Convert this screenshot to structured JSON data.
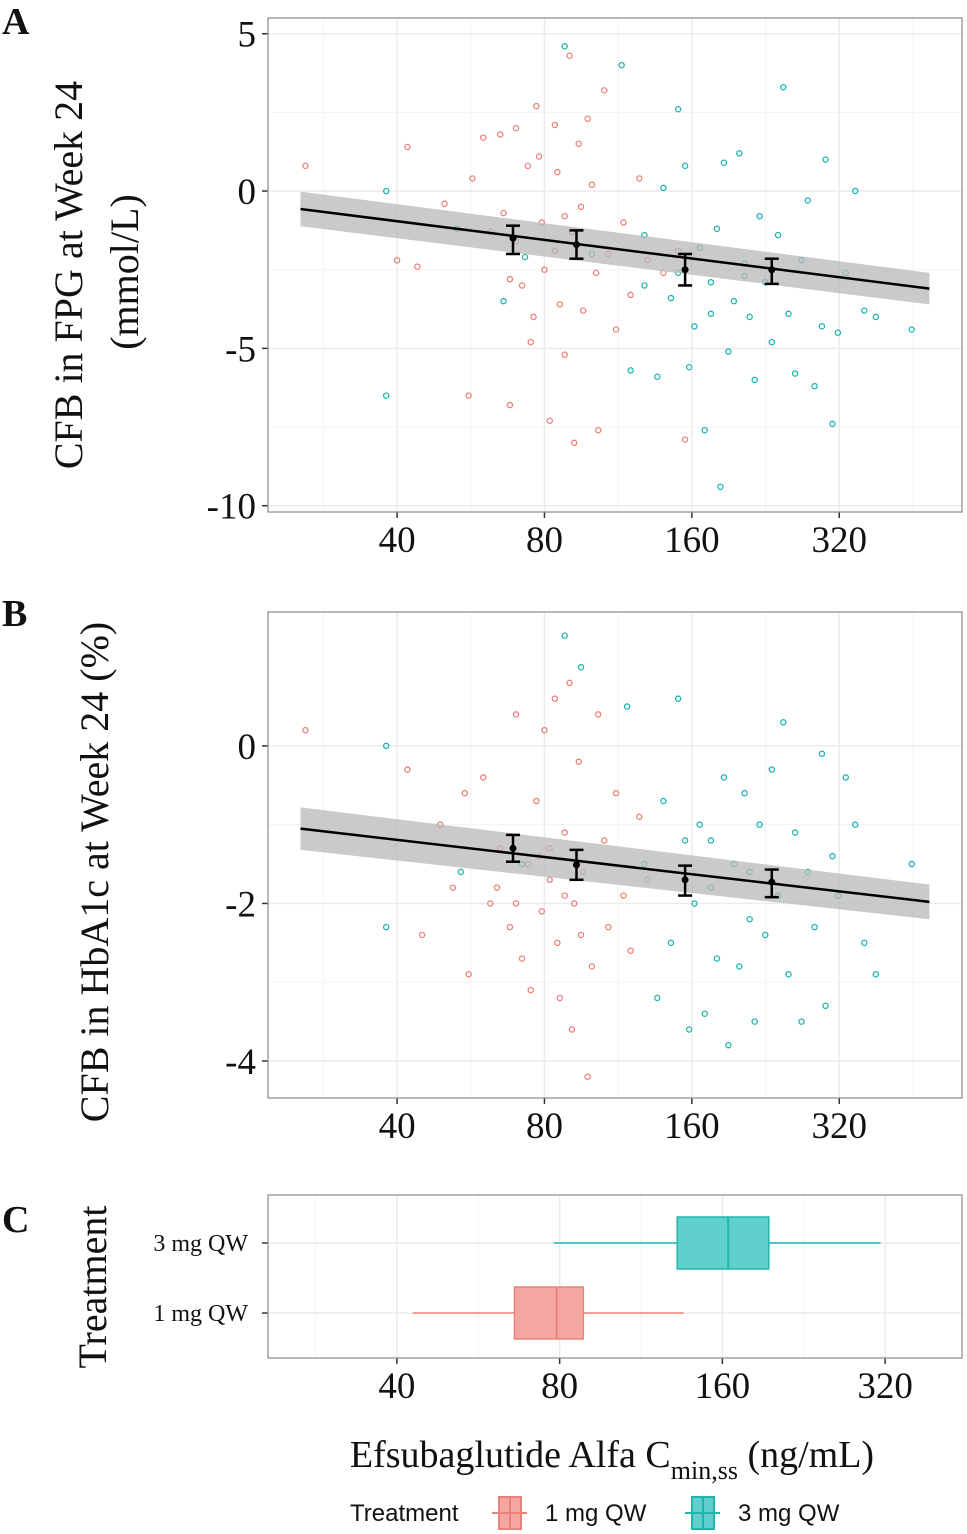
{
  "colors": {
    "red": "#e8837a",
    "teal": "#22b5b0",
    "red_fill": "#f4a6a1",
    "teal_fill": "#5fd0cb",
    "band": "#b8b8b8",
    "grid": "#ebebeb"
  },
  "x_title": {
    "main": "Efsubaglutide Alfa C",
    "sub": "min,ss",
    "unit": " (ng/mL)"
  },
  "legend": {
    "title": "Treatment",
    "items": [
      "1  mg QW",
      "3  mg QW"
    ]
  },
  "chart_data": [
    {
      "panel": "A",
      "type": "scatter",
      "ylabel": [
        "CFB in FPG at Week 24",
        "(mmol/L)"
      ],
      "x_scale": "log2",
      "xlim": [
        21.8,
        570
      ],
      "ylim": [
        -10.2,
        5.5
      ],
      "x_ticks": [
        "40",
        "80",
        "160",
        "320"
      ],
      "y_ticks": [
        "5",
        "0",
        "-5",
        "-10"
      ],
      "grid": true,
      "regression": {
        "x": [
          25.4,
          489
        ],
        "y": [
          -0.57,
          -3.1
        ],
        "band_halfwidth": [
          0.55,
          0.5
        ]
      },
      "binned_means": [
        {
          "x": 69,
          "y": -1.5,
          "lo": -2.0,
          "hi": -1.1
        },
        {
          "x": 93,
          "y": -1.7,
          "lo": -2.15,
          "hi": -1.25
        },
        {
          "x": 155,
          "y": -2.5,
          "lo": -3.0,
          "hi": -2.0
        },
        {
          "x": 233,
          "y": -2.5,
          "lo": -2.95,
          "hi": -2.15
        }
      ],
      "series": [
        {
          "name": "1  mg QW",
          "points": [
            [
              26,
              0.8
            ],
            [
              42,
              1.4
            ],
            [
              40,
              -2.2
            ],
            [
              44,
              -2.4
            ],
            [
              50,
              -0.4
            ],
            [
              56,
              -6.5
            ],
            [
              57,
              0.4
            ],
            [
              60,
              1.7
            ],
            [
              62,
              -1.3
            ],
            [
              65,
              1.8
            ],
            [
              66,
              -0.7
            ],
            [
              68,
              -6.8
            ],
            [
              70,
              2.0
            ],
            [
              72,
              -3.0
            ],
            [
              74,
              0.8
            ],
            [
              75,
              -4.8
            ],
            [
              77,
              2.7
            ],
            [
              79,
              -1.0
            ],
            [
              80,
              -2.5
            ],
            [
              82,
              -7.3
            ],
            [
              84,
              2.1
            ],
            [
              85,
              0.6
            ],
            [
              86,
              -3.6
            ],
            [
              88,
              -5.2
            ],
            [
              90,
              4.3
            ],
            [
              91,
              -1.3
            ],
            [
              92,
              -8.0
            ],
            [
              94,
              1.5
            ],
            [
              96,
              -3.8
            ],
            [
              98,
              2.3
            ],
            [
              100,
              0.2
            ],
            [
              103,
              -7.6
            ],
            [
              106,
              3.2
            ],
            [
              108,
              -2.0
            ],
            [
              112,
              -4.4
            ],
            [
              116,
              -1.0
            ],
            [
              120,
              -3.3
            ],
            [
              125,
              0.4
            ],
            [
              130,
              -2.2
            ],
            [
              155,
              -7.9
            ],
            [
              150,
              -1.9
            ],
            [
              140,
              -2.6
            ],
            [
              70,
              -1.6
            ],
            [
              84,
              -1.9
            ],
            [
              95,
              -0.5
            ],
            [
              78,
              1.1
            ],
            [
              68,
              -2.8
            ],
            [
              102,
              -2.6
            ],
            [
              88,
              -0.8
            ],
            [
              76,
              -4.0
            ]
          ]
        },
        {
          "name": "3  mg QW",
          "points": [
            [
              38,
              0
            ],
            [
              38,
              -6.5
            ],
            [
              53,
              -1.2
            ],
            [
              66,
              -3.5
            ],
            [
              73,
              -2.1
            ],
            [
              88,
              4.6
            ],
            [
              100,
              -2.0
            ],
            [
              115,
              4.0
            ],
            [
              120,
              -5.7
            ],
            [
              128,
              -1.4
            ],
            [
              136,
              -5.9
            ],
            [
              140,
              0.1
            ],
            [
              145,
              -3.4
            ],
            [
              150,
              2.6
            ],
            [
              155,
              0.8
            ],
            [
              158,
              -5.6
            ],
            [
              162,
              -4.3
            ],
            [
              166,
              -1.8
            ],
            [
              170,
              -7.6
            ],
            [
              175,
              -2.9
            ],
            [
              180,
              -1.2
            ],
            [
              183,
              -9.4
            ],
            [
              186,
              0.9
            ],
            [
              190,
              -5.1
            ],
            [
              195,
              -3.5
            ],
            [
              200,
              1.2
            ],
            [
              205,
              -2.3
            ],
            [
              210,
              -4.0
            ],
            [
              215,
              -6.0
            ],
            [
              220,
              -0.8
            ],
            [
              226,
              -2.9
            ],
            [
              233,
              -4.8
            ],
            [
              240,
              -1.4
            ],
            [
              246,
              3.3
            ],
            [
              252,
              -3.9
            ],
            [
              260,
              -5.8
            ],
            [
              268,
              -2.2
            ],
            [
              276,
              -0.3
            ],
            [
              285,
              -6.2
            ],
            [
              295,
              -4.3
            ],
            [
              300,
              1.0
            ],
            [
              310,
              -7.4
            ],
            [
              318,
              -4.5
            ],
            [
              330,
              -2.6
            ],
            [
              345,
              0.0
            ],
            [
              360,
              -3.8
            ],
            [
              380,
              -4.0
            ],
            [
              450,
              -4.4
            ],
            [
              175,
              -3.9
            ],
            [
              150,
              -2.6
            ],
            [
              205,
              -2.7
            ],
            [
              128,
              -3.0
            ]
          ]
        }
      ]
    },
    {
      "panel": "B",
      "type": "scatter",
      "ylabel": [
        "CFB in HbA1c at Week 24 (%)"
      ],
      "x_scale": "log2",
      "xlim": [
        21.8,
        570
      ],
      "ylim": [
        -4.47,
        1.7
      ],
      "x_ticks": [
        "40",
        "80",
        "160",
        "320"
      ],
      "y_ticks": [
        "0",
        "-2",
        "-4"
      ],
      "grid": true,
      "regression": {
        "x": [
          25.4,
          489
        ],
        "y": [
          -1.05,
          -1.98
        ],
        "band_halfwidth": [
          0.27,
          0.22
        ]
      },
      "binned_means": [
        {
          "x": 69,
          "y": -1.3,
          "lo": -1.47,
          "hi": -1.13
        },
        {
          "x": 93,
          "y": -1.51,
          "lo": -1.7,
          "hi": -1.32
        },
        {
          "x": 155,
          "y": -1.7,
          "lo": -1.9,
          "hi": -1.52
        },
        {
          "x": 233,
          "y": -1.73,
          "lo": -1.92,
          "hi": -1.57
        }
      ],
      "series": [
        {
          "name": "1  mg QW",
          "points": [
            [
              26,
              0.2
            ],
            [
              42,
              -0.3
            ],
            [
              45,
              -2.4
            ],
            [
              49,
              -1.0
            ],
            [
              52,
              -1.8
            ],
            [
              55,
              -0.6
            ],
            [
              56,
              -2.9
            ],
            [
              60,
              -0.4
            ],
            [
              62,
              -2.0
            ],
            [
              65,
              -1.3
            ],
            [
              68,
              -2.3
            ],
            [
              70,
              0.4
            ],
            [
              72,
              -2.7
            ],
            [
              74,
              -1.5
            ],
            [
              75,
              -3.1
            ],
            [
              77,
              -0.7
            ],
            [
              79,
              -2.1
            ],
            [
              80,
              0.2
            ],
            [
              82,
              -1.7
            ],
            [
              84,
              0.6
            ],
            [
              85,
              -2.5
            ],
            [
              86,
              -3.2
            ],
            [
              88,
              -1.1
            ],
            [
              90,
              0.8
            ],
            [
              91,
              -3.6
            ],
            [
              92,
              -2.0
            ],
            [
              94,
              -0.2
            ],
            [
              96,
              -1.6
            ],
            [
              98,
              -4.2
            ],
            [
              100,
              -2.8
            ],
            [
              103,
              0.4
            ],
            [
              106,
              -1.2
            ],
            [
              108,
              -2.3
            ],
            [
              112,
              -0.6
            ],
            [
              116,
              -1.9
            ],
            [
              120,
              -2.6
            ],
            [
              125,
              -0.9
            ],
            [
              130,
              -1.7
            ],
            [
              64,
              -1.8
            ],
            [
              82,
              -1.3
            ],
            [
              95,
              -2.4
            ],
            [
              70,
              -2.0
            ],
            [
              88,
              -1.9
            ],
            [
              78,
              -1.4
            ]
          ]
        },
        {
          "name": "3  mg QW",
          "points": [
            [
              38,
              0
            ],
            [
              38,
              -2.3
            ],
            [
              54,
              -1.6
            ],
            [
              72,
              -1.5
            ],
            [
              88,
              1.4
            ],
            [
              95,
              1.0
            ],
            [
              118,
              0.5
            ],
            [
              128,
              -1.5
            ],
            [
              136,
              -3.2
            ],
            [
              140,
              -0.7
            ],
            [
              145,
              -2.5
            ],
            [
              150,
              0.6
            ],
            [
              155,
              -1.2
            ],
            [
              158,
              -3.6
            ],
            [
              162,
              -2.0
            ],
            [
              166,
              -1.0
            ],
            [
              170,
              -3.4
            ],
            [
              175,
              -1.8
            ],
            [
              180,
              -2.7
            ],
            [
              186,
              -0.4
            ],
            [
              190,
              -3.8
            ],
            [
              195,
              -1.5
            ],
            [
              200,
              -2.8
            ],
            [
              205,
              -0.6
            ],
            [
              210,
              -2.2
            ],
            [
              215,
              -3.5
            ],
            [
              220,
              -1.0
            ],
            [
              226,
              -2.4
            ],
            [
              233,
              -0.3
            ],
            [
              240,
              -1.9
            ],
            [
              246,
              0.3
            ],
            [
              252,
              -2.9
            ],
            [
              260,
              -1.1
            ],
            [
              268,
              -3.5
            ],
            [
              276,
              -1.6
            ],
            [
              285,
              -2.3
            ],
            [
              295,
              -0.1
            ],
            [
              300,
              -3.3
            ],
            [
              310,
              -1.4
            ],
            [
              318,
              -1.9
            ],
            [
              330,
              -0.4
            ],
            [
              345,
              -1.0
            ],
            [
              360,
              -2.5
            ],
            [
              380,
              -2.9
            ],
            [
              450,
              -1.5
            ],
            [
              175,
              -1.2
            ],
            [
              210,
              -1.6
            ]
          ]
        }
      ]
    },
    {
      "panel": "C",
      "type": "boxplot",
      "ylabel": [
        "Treatment"
      ],
      "x_scale": "log2",
      "xlim": [
        23.1,
        444
      ],
      "x_ticks": [
        "40",
        "80",
        "160",
        "320"
      ],
      "grid": true,
      "categories": [
        "3 mg QW",
        "1 mg QW"
      ],
      "boxes": [
        {
          "name": "3 mg QW",
          "whisker_low": 78,
          "q1": 132,
          "median": 164,
          "q3": 195,
          "whisker_high": 314
        },
        {
          "name": "1 mg QW",
          "whisker_low": 42.8,
          "q1": 66,
          "median": 79,
          "q3": 88.5,
          "whisker_high": 135.6
        }
      ]
    }
  ]
}
